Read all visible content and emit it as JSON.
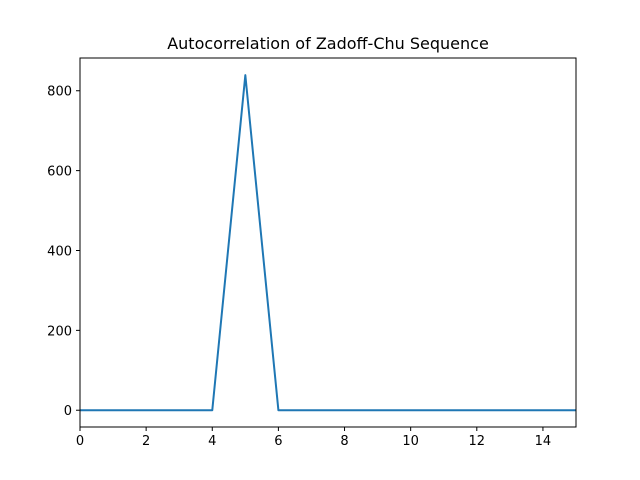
{
  "chart_data": {
    "type": "line",
    "title": "Autocorrelation of Zadoff-Chu Sequence",
    "xlabel": "",
    "ylabel": "",
    "xlim": [
      0,
      15
    ],
    "ylim": [
      -42,
      882
    ],
    "xticks": [
      0,
      2,
      4,
      6,
      8,
      10,
      12,
      14
    ],
    "yticks": [
      0,
      200,
      400,
      600,
      800
    ],
    "grid": false,
    "legend": "none",
    "colors": {
      "line": "#1f77b4"
    },
    "series": [
      {
        "x": [
          0,
          1,
          2,
          3,
          4,
          5,
          6,
          7,
          8,
          9,
          10,
          11,
          12,
          13,
          14,
          15
        ],
        "values": [
          0,
          0,
          0,
          0,
          0,
          839,
          0,
          0,
          0,
          0,
          0,
          0,
          0,
          0,
          0,
          0
        ]
      }
    ]
  }
}
